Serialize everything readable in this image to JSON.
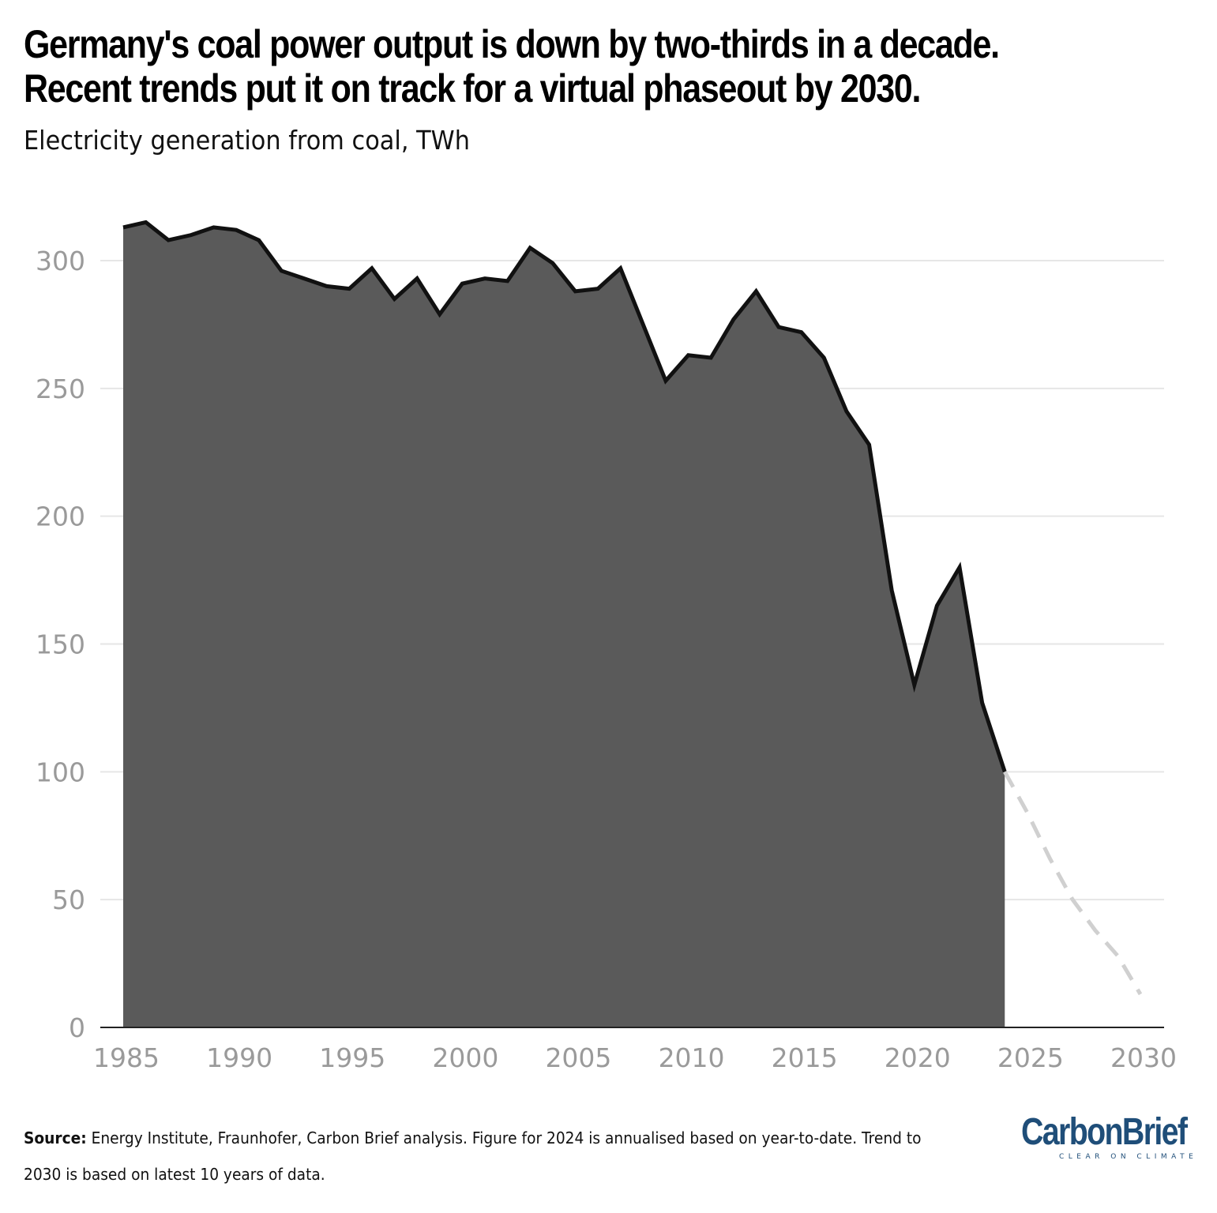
{
  "title_lines": [
    "Germany's coal power output is down by two-thirds in a decade.",
    "Recent trends put it on track for a virtual phaseout by 2030."
  ],
  "subtitle": "Electricity generation from coal, TWh",
  "source": {
    "label": "Source:",
    "text": " Energy Institute, Fraunhofer, Carbon Brief analysis. Figure for 2024 is annualised based on year-to-date. Trend to 2030 is based on latest 10 years of data."
  },
  "logo": {
    "wordmark": "CarbonBrief",
    "tagline": "CLEAR ON CLIMATE",
    "color": "#1f4e79"
  },
  "chart_data": {
    "type": "area",
    "title": "",
    "xlabel": "",
    "ylabel": "",
    "xlim": [
      1985,
      2030
    ],
    "ylim": [
      0,
      320
    ],
    "grid": true,
    "yticks": [
      0,
      50,
      100,
      150,
      200,
      250,
      300
    ],
    "xticks": [
      1985,
      1990,
      1995,
      2000,
      2005,
      2010,
      2015,
      2020,
      2025,
      2030
    ],
    "colors": {
      "area": "#5a5a5a",
      "line": "#111111",
      "trend": "#d0d0d0",
      "grid": "#e6e6e6",
      "tick_label": "#9a9a9a"
    },
    "series": [
      {
        "x": [
          1985,
          1986,
          1987,
          1988,
          1989,
          1990,
          1991,
          1992,
          1993,
          1994,
          1995,
          1996,
          1997,
          1998,
          1999,
          2000,
          2001,
          2002,
          2003,
          2004,
          2005,
          2006,
          2007,
          2008,
          2009,
          2010,
          2011,
          2012,
          2013,
          2014,
          2015,
          2016,
          2017,
          2018,
          2019,
          2020,
          2021,
          2022,
          2023,
          2024
        ],
        "values": [
          313,
          315,
          308,
          310,
          313,
          312,
          308,
          296,
          293,
          290,
          289,
          297,
          285,
          293,
          279,
          291,
          293,
          292,
          305,
          299,
          288,
          289,
          297,
          275,
          253,
          263,
          262,
          277,
          288,
          274,
          272,
          262,
          241,
          228,
          171,
          134,
          165,
          180,
          127,
          100
        ]
      },
      {
        "x": [
          2024,
          2025,
          2026,
          2027,
          2028,
          2029,
          2030
        ],
        "values": [
          100,
          84,
          66,
          50,
          38,
          28,
          13
        ],
        "style": "dashed"
      }
    ]
  }
}
